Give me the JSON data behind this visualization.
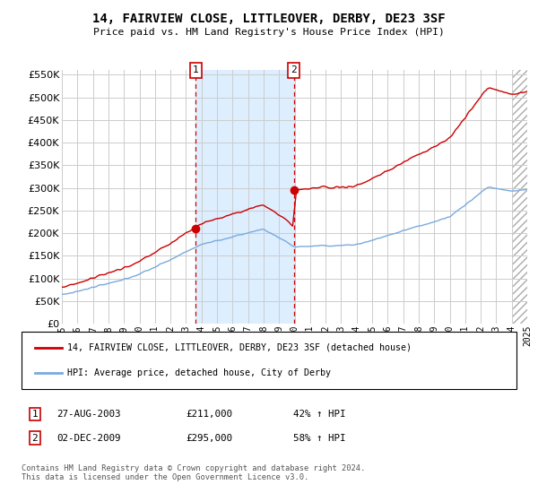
{
  "title": "14, FAIRVIEW CLOSE, LITTLEOVER, DERBY, DE23 3SF",
  "subtitle": "Price paid vs. HM Land Registry's House Price Index (HPI)",
  "legend_line1": "14, FAIRVIEW CLOSE, LITTLEOVER, DERBY, DE23 3SF (detached house)",
  "legend_line2": "HPI: Average price, detached house, City of Derby",
  "footer": "Contains HM Land Registry data © Crown copyright and database right 2024.\nThis data is licensed under the Open Government Licence v3.0.",
  "sale1_date": "27-AUG-2003",
  "sale1_price": 211000,
  "sale1_hpi": "42% ↑ HPI",
  "sale1_label": "1",
  "sale2_date": "02-DEC-2009",
  "sale2_price": 295000,
  "sale2_hpi": "58% ↑ HPI",
  "sale2_label": "2",
  "ylim": [
    0,
    560000
  ],
  "yticks": [
    0,
    50000,
    100000,
    150000,
    200000,
    250000,
    300000,
    350000,
    400000,
    450000,
    500000,
    550000
  ],
  "year_start": 1995,
  "year_end": 2025,
  "red_color": "#cc0000",
  "blue_color": "#7aaadd",
  "shaded_color": "#ddeeff",
  "hatch_color": "#aaaaaa",
  "grid_color": "#cccccc",
  "bg_color": "#ffffff"
}
